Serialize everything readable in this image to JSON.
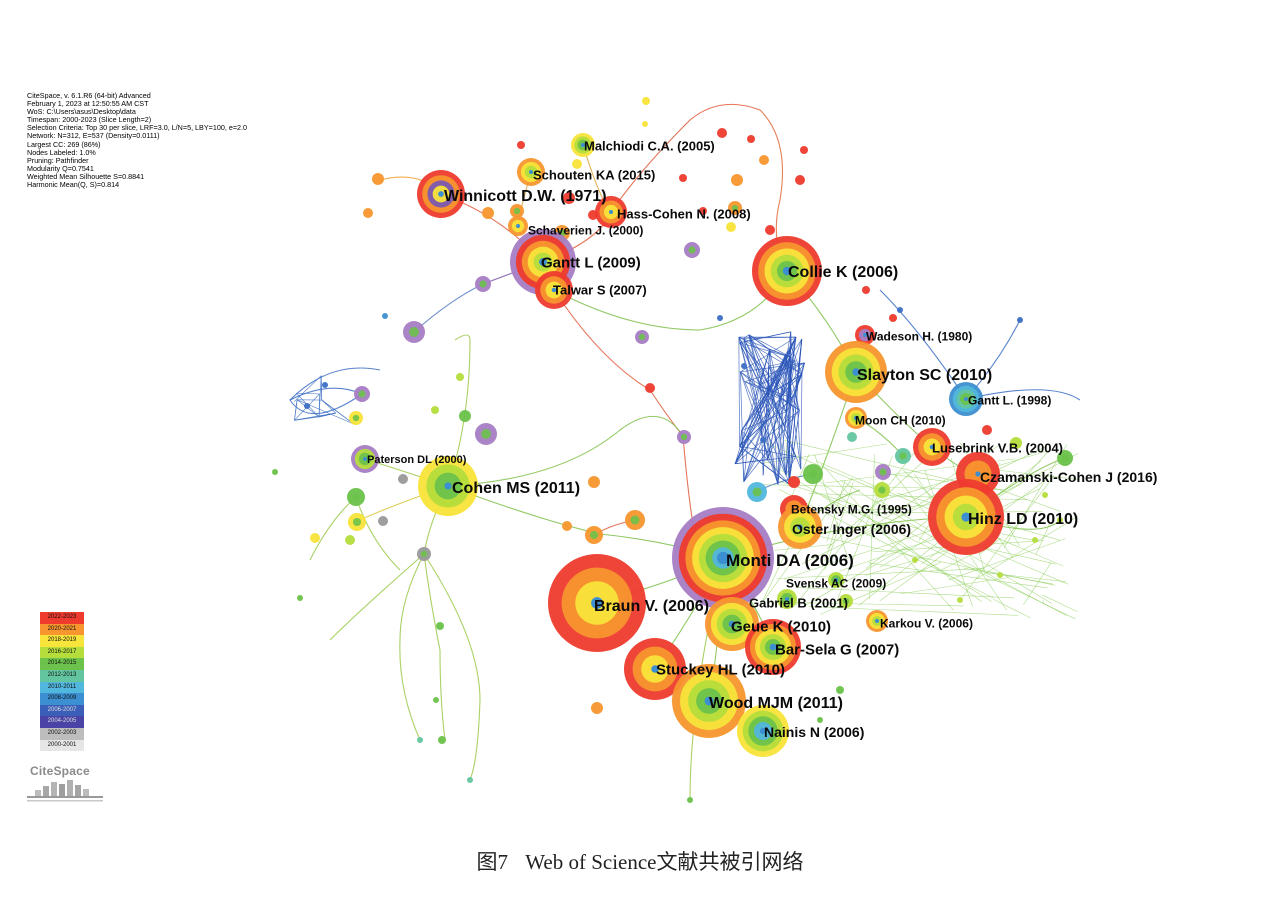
{
  "info_lines": [
    "CiteSpace, v. 6.1.R6 (64-bit) Advanced",
    "February 1, 2023 at 12:50:55 AM CST",
    "WoS: C:\\Users\\asus\\Desktop\\data",
    "Timespan: 2000-2023 (Slice Length=2)",
    "Selection Criteria: Top 30 per slice, LRF=3.0, L/N=5, LBY=100, e=2.0",
    "Network: N=312, E=537 (Density=0.0111)",
    "Largest CC: 269 (86%)",
    "Nodes Labeled: 1.0%",
    "Pruning: Pathfinder",
    "Modularity Q=0.7541",
    "Weighted Mean Silhouette S=0.8841",
    "Harmonic Mean(Q, S)=0.814"
  ],
  "legend": [
    {
      "label": "2022-2023",
      "color": "#ee3b2e"
    },
    {
      "label": "2020-2021",
      "color": "#f7962e"
    },
    {
      "label": "2018-2019",
      "color": "#f8e43a"
    },
    {
      "label": "2016-2017",
      "color": "#b5dd3c"
    },
    {
      "label": "2014-2015",
      "color": "#6cc24a"
    },
    {
      "label": "2012-2013",
      "color": "#63c5a0"
    },
    {
      "label": "2010-2011",
      "color": "#52b7dc"
    },
    {
      "label": "2008-2009",
      "color": "#3c8fd0"
    },
    {
      "label": "2006-2007",
      "color": "#3b5fb8"
    },
    {
      "label": "2004-2005",
      "color": "#4a44a6"
    },
    {
      "label": "2002-2003",
      "color": "#bdbdbd"
    },
    {
      "label": "2000-2001",
      "color": "#e6e6e6"
    }
  ],
  "logo_text": "CiteSpace",
  "caption": {
    "figure": "图7",
    "text": "Web of Science文献共被引网络"
  },
  "nodes": [
    {
      "label": "Malchiodi C.A. (2005)",
      "rings": [
        "#f8e43a",
        "#b5dd3c",
        "#6cc24a"
      ]
    },
    {
      "label": "Schouten KA (2015)",
      "rings": [
        "#f7962e",
        "#f8e43a",
        "#b5dd3c"
      ]
    },
    {
      "label": "Winnicott D.W. (1971)",
      "rings": [
        "#ee3b2e",
        "#f7962e",
        "#7b5ab0",
        "#f8e43a"
      ]
    },
    {
      "label": "Hass-Cohen N. (2008)",
      "rings": [
        "#ee3b2e",
        "#f7962e",
        "#f8e43a"
      ]
    },
    {
      "label": "Schaverien J. (2000)",
      "rings": [
        "#f7962e",
        "#f8e43a"
      ]
    },
    {
      "label": "Gantt L (2009)",
      "rings": [
        "#a77cc4",
        "#ee3b2e",
        "#f7962e",
        "#f8e43a",
        "#b5dd3c"
      ]
    },
    {
      "label": "Talwar S (2007)",
      "rings": [
        "#ee3b2e",
        "#f7962e",
        "#f8e43a"
      ]
    },
    {
      "label": "Collie K (2006)",
      "rings": [
        "#ee3b2e",
        "#f7962e",
        "#f8e43a",
        "#b5dd3c",
        "#6cc24a"
      ]
    },
    {
      "label": "Wadeson H. (1980)",
      "rings": [
        "#ee3b2e",
        "#a77cc4"
      ]
    },
    {
      "label": "Slayton SC (2010)",
      "rings": [
        "#f7962e",
        "#f8e43a",
        "#b5dd3c",
        "#6cc24a"
      ]
    },
    {
      "label": "Gantt L. (1998)",
      "rings": [
        "#3c8fd0",
        "#52b7dc",
        "#63c5a0",
        "#6cc24a"
      ]
    },
    {
      "label": "Moon CH (2010)",
      "rings": [
        "#f7962e",
        "#f8e43a",
        "#b5dd3c"
      ]
    },
    {
      "label": "Lusebrink V.B. (2004)",
      "rings": [
        "#ee3b2e",
        "#f7962e",
        "#f8e43a"
      ]
    },
    {
      "label": "Czamanski-Cohen J (2016)",
      "rings": [
        "#ee3b2e",
        "#f7962e"
      ]
    },
    {
      "label": "Hinz LD (2010)",
      "rings": [
        "#ee3b2e",
        "#f7962e",
        "#f8e43a",
        "#b5dd3c"
      ]
    },
    {
      "label": "Paterson DL (2000)",
      "rings": [
        "#a77cc4",
        "#b5dd3c",
        "#6cc24a"
      ]
    },
    {
      "label": "Cohen MS (2011)",
      "rings": [
        "#f8e43a",
        "#b5dd3c",
        "#6cc24a"
      ]
    },
    {
      "label": "Betensky M.G. (1995)",
      "rings": [
        "#ee3b2e",
        "#f7962e"
      ]
    },
    {
      "label": "Oster Inger (2006)",
      "rings": [
        "#f7962e",
        "#f8e43a",
        "#b5dd3c"
      ]
    },
    {
      "label": "Monti DA (2006)",
      "rings": [
        "#a77cc4",
        "#ee3b2e",
        "#f7962e",
        "#f8e43a",
        "#b5dd3c",
        "#6cc24a",
        "#52b7dc"
      ]
    },
    {
      "label": "Svensk AC (2009)",
      "rings": [
        "#b5dd3c",
        "#6cc24a"
      ]
    },
    {
      "label": "Braun V. (2006)",
      "rings": [
        "#ee3b2e",
        "#f7962e",
        "#f8e43a"
      ]
    },
    {
      "label": "Gabriel B (2001)",
      "rings": [
        "#b5dd3c",
        "#6cc24a"
      ]
    },
    {
      "label": "Geue K (2010)",
      "rings": [
        "#f7962e",
        "#f8e43a",
        "#b5dd3c",
        "#6cc24a"
      ]
    },
    {
      "label": "Karkou V. (2006)",
      "rings": [
        "#f7962e",
        "#f8e43a",
        "#b5dd3c"
      ]
    },
    {
      "label": "Bar-Sela G (2007)",
      "rings": [
        "#ee3b2e",
        "#f7962e",
        "#f8e43a",
        "#b5dd3c",
        "#6cc24a"
      ]
    },
    {
      "label": "Stuckey HL (2010)",
      "rings": [
        "#ee3b2e",
        "#f7962e",
        "#f8e43a"
      ]
    },
    {
      "label": "Wood MJM (2011)",
      "rings": [
        "#f7962e",
        "#f8e43a",
        "#b5dd3c",
        "#6cc24a"
      ]
    },
    {
      "label": "Nainis N (2006)",
      "rings": [
        "#f8e43a",
        "#b5dd3c",
        "#6cc24a",
        "#52b7dc"
      ]
    }
  ]
}
